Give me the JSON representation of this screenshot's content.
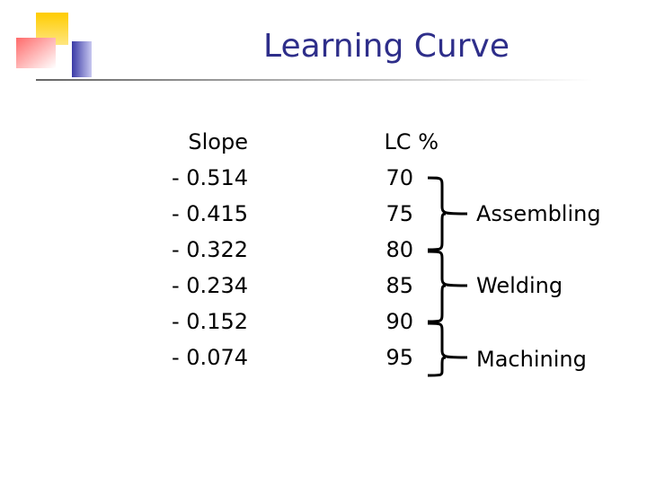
{
  "title": "Learning Curve",
  "slope_column": {
    "header": "Slope",
    "values": [
      "- 0.514",
      "- 0.415",
      "- 0.322",
      "- 0.234",
      "- 0.152",
      "- 0.074"
    ]
  },
  "lc_column": {
    "header": "LC %",
    "values": [
      "70",
      "75",
      "80",
      "85",
      "90",
      "95"
    ]
  },
  "processes": [
    "Assembling",
    "Welding",
    "Machining"
  ],
  "colors": {
    "title": "#2e2e8a",
    "accent_yellow": "#ffcc00",
    "accent_red": "#ff5a5a",
    "accent_blue": "#3a3aa6"
  }
}
